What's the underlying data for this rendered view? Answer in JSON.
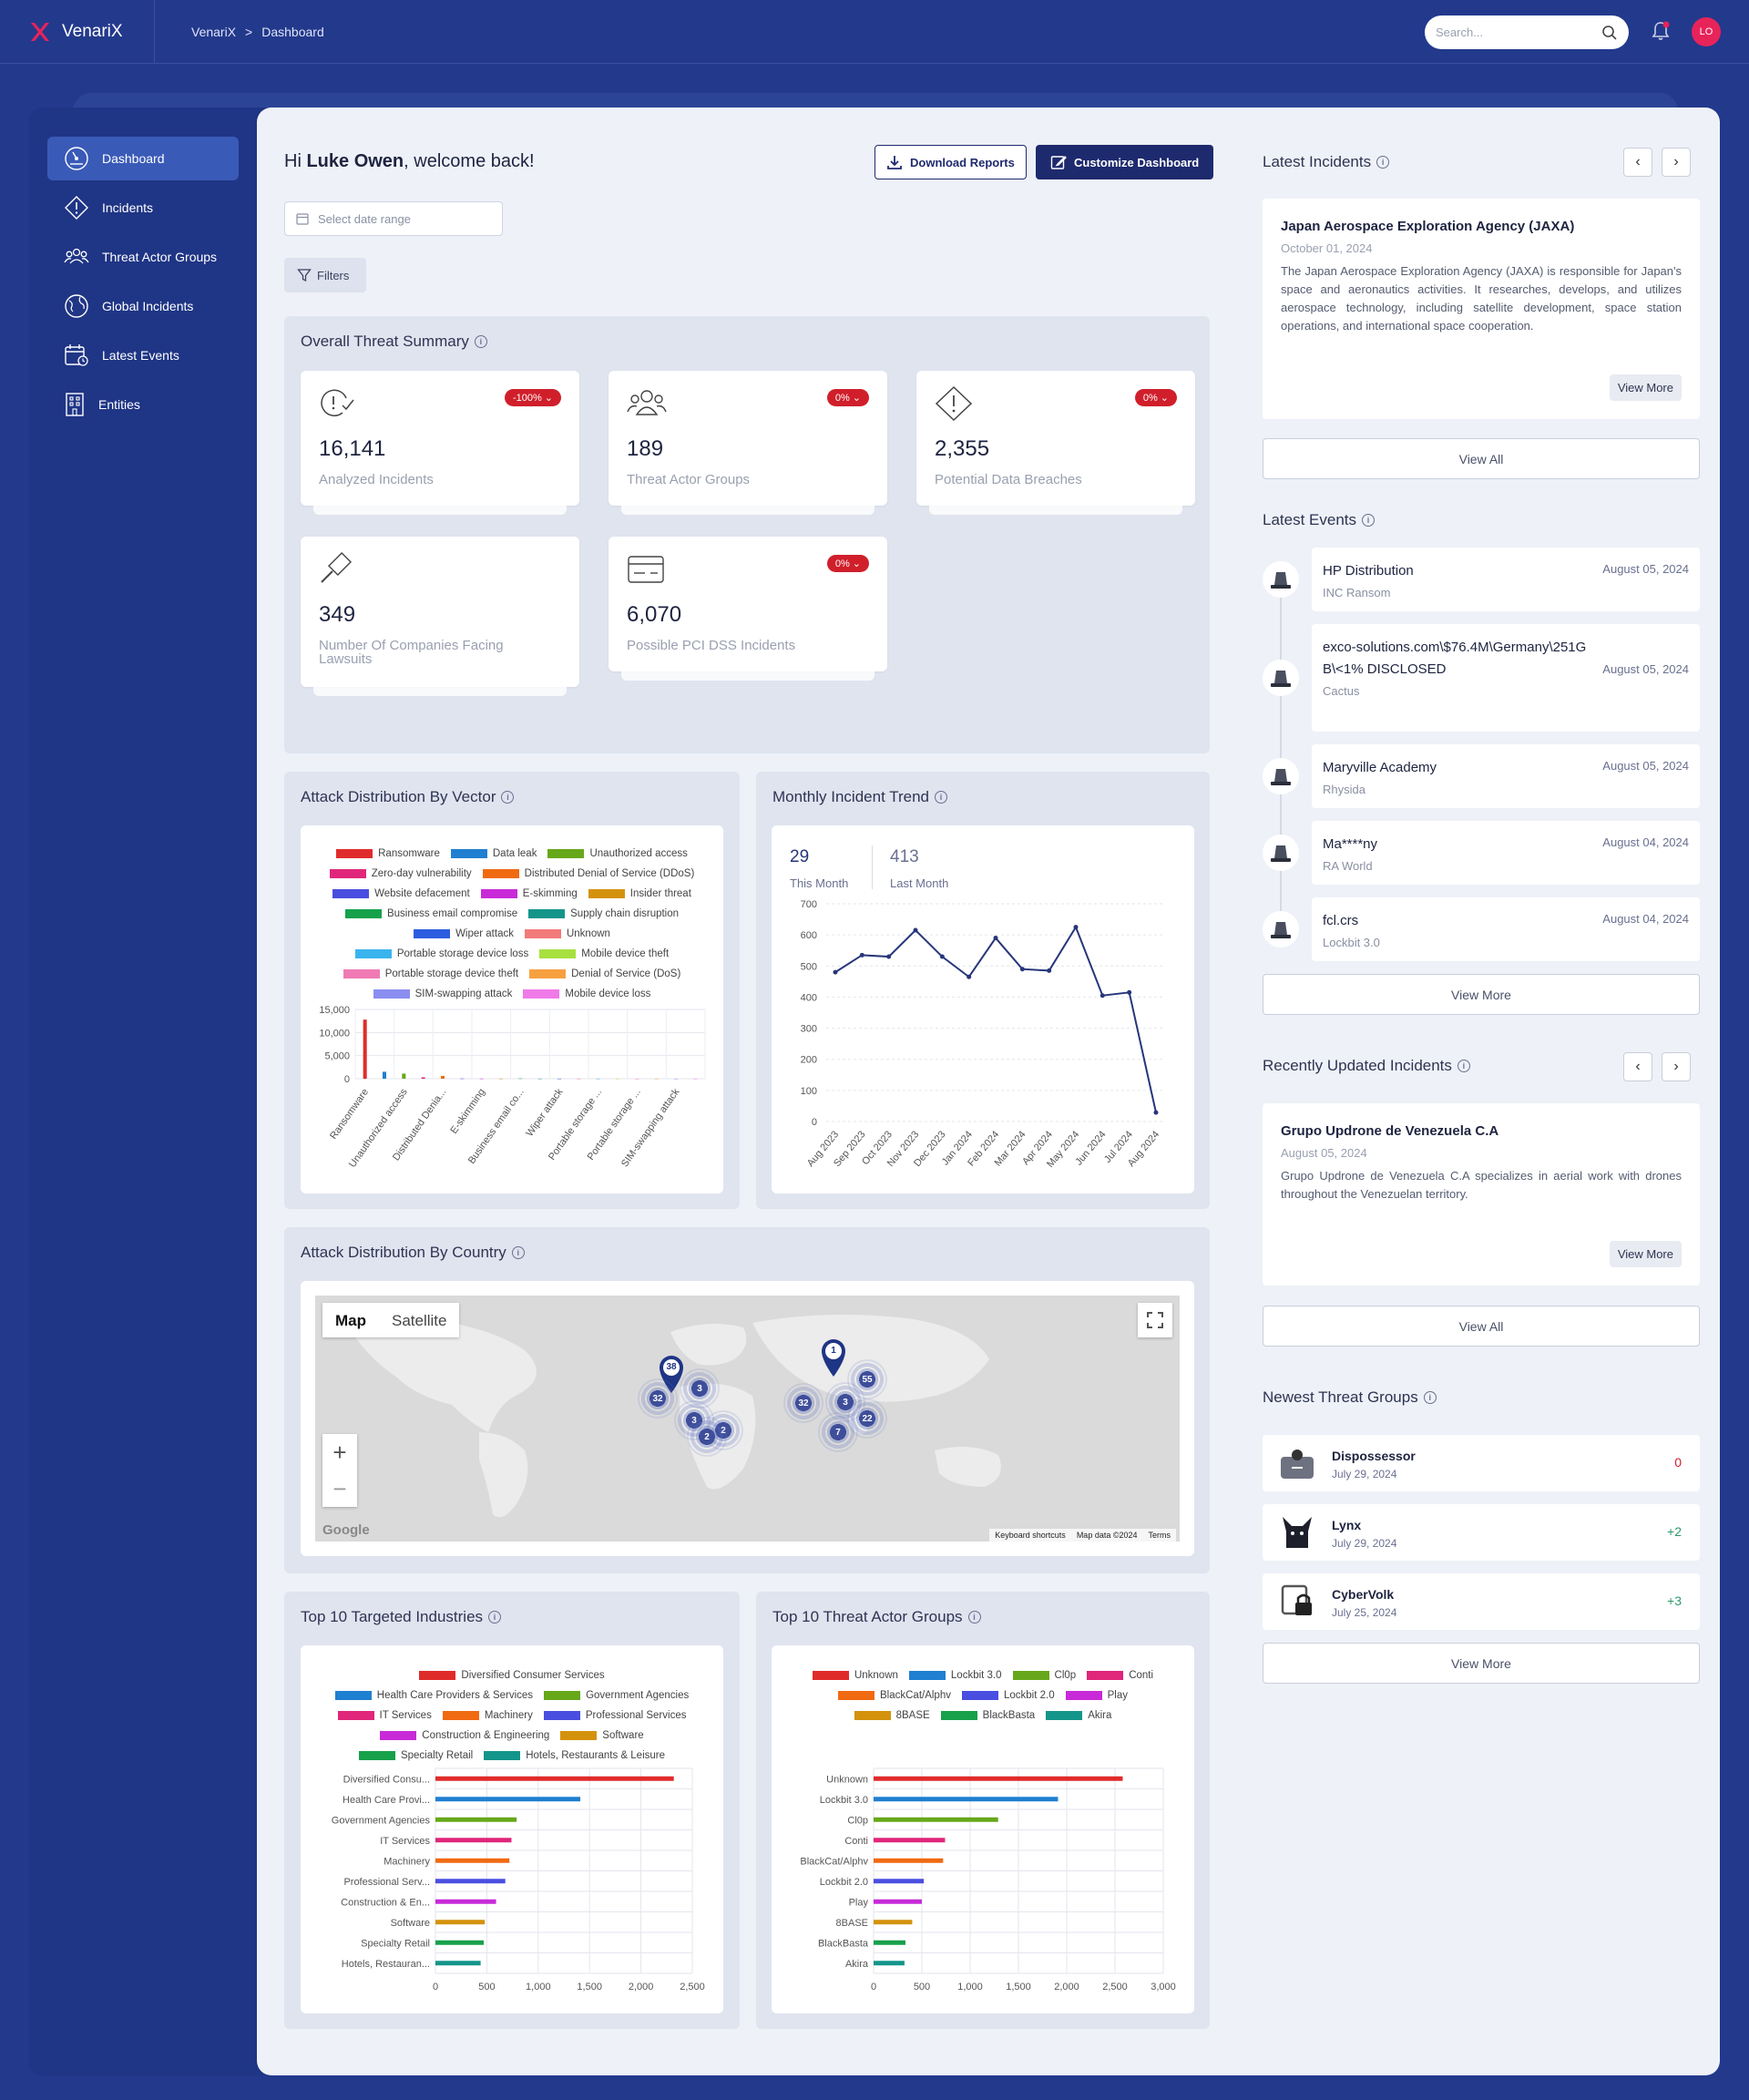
{
  "app": {
    "name": "VenariX",
    "avatar_initials": "LO",
    "accent": "#e8235a"
  },
  "breadcrumb": {
    "root": "VenariX",
    "separator": ">",
    "current": "Dashboard"
  },
  "search": {
    "placeholder": "Search..."
  },
  "sidebar": {
    "items": [
      {
        "label": "Dashboard",
        "icon": "dashboard-gauge-icon",
        "active": true
      },
      {
        "label": "Incidents",
        "icon": "alert-diamond-icon"
      },
      {
        "label": "Threat Actor Groups",
        "icon": "group-icon"
      },
      {
        "label": "Global Incidents",
        "icon": "globe-icon"
      },
      {
        "label": "Latest Events",
        "icon": "calendar-clock-icon"
      },
      {
        "label": "Entities",
        "icon": "building-icon"
      }
    ]
  },
  "greeting": {
    "prefix": "Hi",
    "name": "Luke Owen",
    "suffix": ", welcome back!"
  },
  "actions": {
    "download": "Download Reports",
    "customize": "Customize Dashboard",
    "date_placeholder": "Select date range",
    "filters": "Filters"
  },
  "summary": {
    "title": "Overall Threat Summary",
    "cards": [
      {
        "value": "16,141",
        "label": "Analyzed Incidents",
        "badge": "-100%",
        "icon": "clock-alert-icon"
      },
      {
        "value": "189",
        "label": "Threat Actor Groups",
        "badge": "0%",
        "icon": "users-icon"
      },
      {
        "value": "2,355",
        "label": "Potential Data Breaches",
        "badge": "0%",
        "icon": "warning-diamond-icon"
      },
      {
        "value": "349",
        "label": "Number Of Companies Facing Lawsuits",
        "badge": "",
        "icon": "gavel-icon"
      },
      {
        "value": "6,070",
        "label": "Possible PCI DSS Incidents",
        "badge": "0%",
        "icon": "credit-card-icon"
      }
    ]
  },
  "sections": {
    "vector": "Attack Distribution By Vector",
    "trend": "Monthly Incident Trend",
    "country": "Attack Distribution By Country",
    "industries": "Top 10 Targeted Industries",
    "actors": "Top 10 Threat Actor Groups"
  },
  "trend_stats": {
    "this_month_value": "29",
    "this_month_label": "This Month",
    "last_month_value": "413",
    "last_month_label": "Last Month"
  },
  "map": {
    "tab_map": "Map",
    "tab_satellite": "Satellite",
    "zoom_in": "+",
    "zoom_out": "−",
    "attribution": "Google",
    "shortcuts": "Keyboard shortcuts",
    "map_data": "Map data ©2024",
    "terms": "Terms",
    "markers": [
      "38",
      "1"
    ],
    "clusters": [
      "32",
      "3",
      "3",
      "2",
      "2",
      "32",
      "3",
      "55",
      "22",
      "7"
    ]
  },
  "right": {
    "latest_incidents": {
      "title": "Latest Incidents",
      "card": {
        "title": "Japan Aerospace Exploration Agency (JAXA)",
        "date": "October 01, 2024",
        "text": "The Japan Aerospace Exploration Agency (JAXA) is responsible for Japan's space and aeronautics activities. It researches, develops, and utilizes aerospace technology, including satellite development, space station operations, and international space cooperation.",
        "more": "View More"
      },
      "view_all": "View All"
    },
    "latest_events": {
      "title": "Latest Events",
      "view_more": "View More",
      "items": [
        {
          "title": "HP Distribution",
          "group": "INC Ransom",
          "date": "August 05, 2024"
        },
        {
          "title": "exco-solutions.com\\$76.4M\\Germany\\251GB\\<1% DISCLOSED",
          "group": "Cactus",
          "date": "August 05, 2024"
        },
        {
          "title": "Maryville Academy",
          "group": "Rhysida",
          "date": "August 05, 2024"
        },
        {
          "title": "Ma****ny",
          "group": "RA World",
          "date": "August 04, 2024"
        },
        {
          "title": "fcl.crs",
          "group": "Lockbit 3.0",
          "date": "August 04, 2024"
        }
      ]
    },
    "recent_updated": {
      "title": "Recently Updated Incidents",
      "card": {
        "title": "Grupo Updrone de Venezuela C.A",
        "date": "August 05, 2024",
        "text": "Grupo Updrone de Venezuela C.A specializes in aerial work with drones throughout the Venezuelan territory.",
        "more": "View More"
      },
      "view_all": "View All"
    },
    "newest_groups": {
      "title": "Newest Threat Groups",
      "view_more": "View More",
      "items": [
        {
          "name": "Dispossessor",
          "date": "July 29, 2024",
          "count": "0",
          "color": "#d01f2b"
        },
        {
          "name": "Lynx",
          "date": "July 29, 2024",
          "count": "+2",
          "color": "#2e9a6a"
        },
        {
          "name": "CyberVolk",
          "date": "July 25, 2024",
          "count": "+3",
          "color": "#2e9a6a"
        }
      ]
    }
  },
  "chart_data": [
    {
      "type": "bar",
      "title": "Attack Distribution By Vector",
      "legend": [
        "Ransomware",
        "Data leak",
        "Unauthorized access",
        "Zero-day vulnerability",
        "Distributed Denial of Service (DDoS)",
        "Website defacement",
        "E-skimming",
        "Insider threat",
        "Business email compromise",
        "Supply chain disruption",
        "Wiper attack",
        "Unknown",
        "Portable storage device loss",
        "Mobile device theft",
        "Portable storage device theft",
        "Denial of Service (DoS)",
        "SIM-swapping attack",
        "Mobile device loss"
      ],
      "colors": [
        "#e02b2b",
        "#1f7fd0",
        "#66a81a",
        "#e0267a",
        "#f06a12",
        "#4a4ee0",
        "#c82ad8",
        "#d4920c",
        "#17a14a",
        "#14958a",
        "#2c5de0",
        "#f27a7a",
        "#3bb4ee",
        "#a8e040",
        "#f07ab4",
        "#f7a040",
        "#8a8ef0",
        "#f07ae8"
      ],
      "categories": [
        "Ransomware",
        "Data leak",
        "Unauthorized access",
        "Zero-day vulnerability",
        "Distributed Denia...",
        "Website defacement",
        "E-skimming",
        "Insider threat",
        "Business email co...",
        "Supply chain disruption",
        "Wiper attack",
        "Unknown",
        "Portable storage ...",
        "Mobile device theft",
        "Portable storage ...",
        "Denial of Service (DoS)",
        "SIM-swapping attack",
        "Mobile device loss"
      ],
      "tick_labels_shown": [
        "Ransomware",
        "Unauthorized access",
        "Distributed Denia...",
        "E-skimming",
        "Business email co...",
        "Wiper attack",
        "Portable storage ...",
        "Portable storage ...",
        "SIM-swapping attack"
      ],
      "values": [
        12800,
        1500,
        1100,
        300,
        600,
        40,
        30,
        20,
        60,
        20,
        15,
        10,
        8,
        6,
        5,
        4,
        3,
        2
      ],
      "ylim": [
        0,
        15000
      ],
      "yticks": [
        "15,000",
        "10,000",
        "5,000",
        "0"
      ],
      "grid": true,
      "legend_position": "top"
    },
    {
      "type": "line",
      "title": "Monthly Incident Trend",
      "x": [
        "Aug 2023",
        "Sep 2023",
        "Oct 2023",
        "Nov 2023",
        "Dec 2023",
        "Jan 2024",
        "Feb 2024",
        "Mar 2024",
        "Apr 2024",
        "May 2024",
        "Jun 2024",
        "Jul 2024",
        "Aug 2024"
      ],
      "y": [
        480,
        535,
        530,
        615,
        530,
        465,
        590,
        490,
        485,
        625,
        405,
        415,
        29
      ],
      "ylim": [
        0,
        700
      ],
      "yticks": [
        0,
        100,
        200,
        300,
        400,
        500,
        600,
        700
      ],
      "color": "#26367a",
      "grid": true
    },
    {
      "type": "bar",
      "orientation": "horizontal",
      "title": "Top 10 Targeted Industries",
      "categories": [
        "Diversified Consu...",
        "Health Care Provi...",
        "Government Agencies",
        "IT Services",
        "Machinery",
        "Professional Serv...",
        "Construction & En...",
        "Software",
        "Specialty Retail",
        "Hotels, Restauran..."
      ],
      "legend": [
        "Diversified Consumer Services",
        "Health Care Providers & Services",
        "Government Agencies",
        "IT Services",
        "Machinery",
        "Professional Services",
        "Construction & Engineering",
        "Software",
        "Specialty Retail",
        "Hotels, Restaurants & Leisure"
      ],
      "values": [
        2320,
        1410,
        790,
        740,
        720,
        680,
        590,
        480,
        470,
        440
      ],
      "colors": [
        "#e02b2b",
        "#1f7fd0",
        "#66a81a",
        "#e0267a",
        "#f06a12",
        "#4a4ee0",
        "#c82ad8",
        "#d4920c",
        "#17a14a",
        "#14958a"
      ],
      "xlim": [
        0,
        2500
      ],
      "xticks": [
        "0",
        "500",
        "1,000",
        "1,500",
        "2,000",
        "2,500"
      ],
      "grid": true,
      "legend_position": "top"
    },
    {
      "type": "bar",
      "orientation": "horizontal",
      "title": "Top 10 Threat Actor Groups",
      "categories": [
        "Unknown",
        "Lockbit 3.0",
        "Cl0p",
        "Conti",
        "BlackCat/Alphv",
        "Lockbit 2.0",
        "Play",
        "8BASE",
        "BlackBasta",
        "Akira"
      ],
      "legend": [
        "Unknown",
        "Lockbit 3.0",
        "Cl0p",
        "Conti",
        "BlackCat/Alphv",
        "Lockbit 2.0",
        "Play",
        "8BASE",
        "BlackBasta",
        "Akira"
      ],
      "values": [
        2580,
        1910,
        1290,
        740,
        720,
        520,
        500,
        400,
        330,
        320
      ],
      "colors": [
        "#e02b2b",
        "#1f7fd0",
        "#66a81a",
        "#e0267a",
        "#f06a12",
        "#4a4ee0",
        "#c82ad8",
        "#d4920c",
        "#17a14a",
        "#14958a"
      ],
      "xlim": [
        0,
        3000
      ],
      "xticks": [
        "0",
        "500",
        "1,000",
        "1,500",
        "2,000",
        "2,500",
        "3,000"
      ],
      "grid": true,
      "legend_position": "top"
    }
  ]
}
